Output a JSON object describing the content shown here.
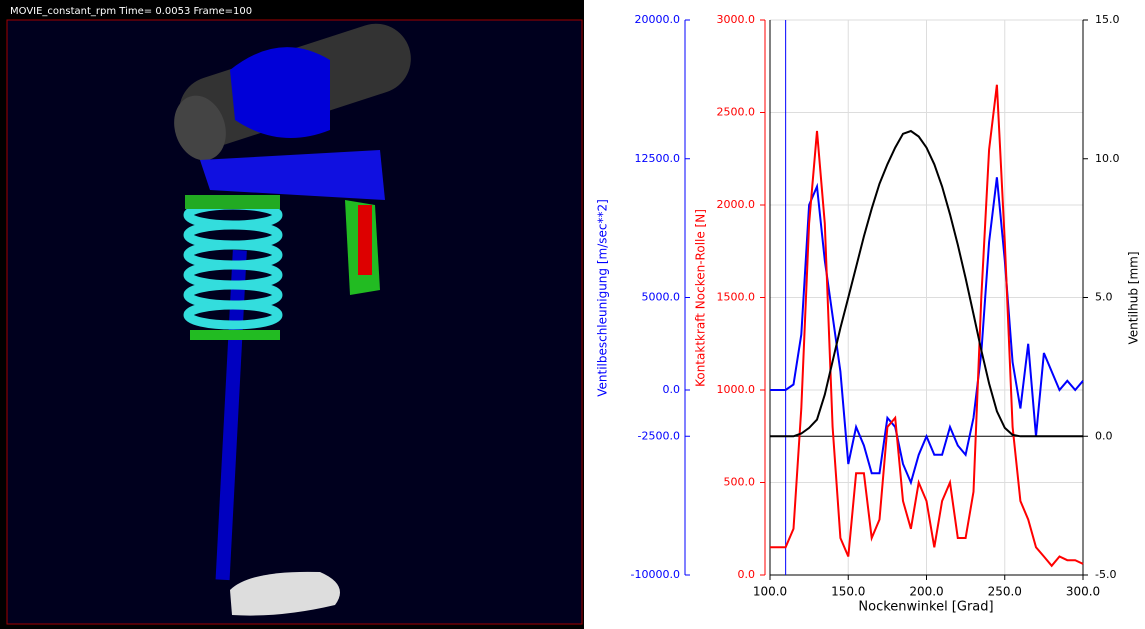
{
  "viewport": {
    "title": "MOVIE_constant_rpm   Time= 0.0053  Frame=100"
  },
  "chart_data": {
    "type": "line",
    "xlabel": "Nockenwinkel [Grad]",
    "xlim": [
      100,
      300
    ],
    "xticks": [
      {
        "value": 100,
        "label": "100.0"
      },
      {
        "value": 150,
        "label": "150.0"
      },
      {
        "value": 200,
        "label": "200.0"
      },
      {
        "value": 250,
        "label": "250.0"
      },
      {
        "value": 300,
        "label": "300.0"
      }
    ],
    "x": [
      100,
      105,
      110,
      115,
      120,
      125,
      130,
      135,
      140,
      145,
      150,
      155,
      160,
      165,
      170,
      175,
      180,
      185,
      190,
      195,
      200,
      205,
      210,
      215,
      220,
      225,
      230,
      235,
      240,
      245,
      250,
      255,
      260,
      265,
      270,
      275,
      280,
      285,
      290,
      295,
      300
    ],
    "ylabel": "Kontaktkraft Nocken-Rolle [N]",
    "ylim": [
      0,
      3000
    ],
    "yticks": [
      {
        "value": 0,
        "label": "0.0"
      },
      {
        "value": 500,
        "label": "500.0"
      },
      {
        "value": 1000,
        "label": "1000.0"
      },
      {
        "value": 1500,
        "label": "1500.0"
      },
      {
        "value": 2000,
        "label": "2000.0"
      },
      {
        "value": 2500,
        "label": "2500.0"
      },
      {
        "value": 3000,
        "label": "3000.0"
      }
    ],
    "y2label": "Ventilhub [mm]",
    "y2lim": [
      -5,
      15
    ],
    "y2ticks": [
      {
        "value": -5,
        "label": "-5.0"
      },
      {
        "value": 0,
        "label": "0.0"
      },
      {
        "value": 5,
        "label": "5.0"
      },
      {
        "value": 10,
        "label": "10.0"
      },
      {
        "value": 15,
        "label": "15.0"
      }
    ],
    "y3label": "Ventilbeschleunigung [m/sec**2]",
    "y3lim": [
      -10000,
      20000
    ],
    "y3ticks": [
      {
        "value": -10000,
        "label": "-10000.0"
      },
      {
        "value": -2500,
        "label": "-2500.0"
      },
      {
        "value": 0,
        "label": "0.0"
      },
      {
        "value": 5000,
        "label": "5000.0"
      },
      {
        "value": 12500,
        "label": "12500.0"
      },
      {
        "value": 20000,
        "label": "20000.0"
      }
    ],
    "grid": true,
    "cursor_x": 110,
    "series": [
      {
        "axis": "y3",
        "color": "#0000ff",
        "values": [
          0,
          0,
          0,
          300,
          3000,
          10000,
          11000,
          7000,
          4000,
          1000,
          -4000,
          -2000,
          -3000,
          -4500,
          -4500,
          -1500,
          -2000,
          -4000,
          -5000,
          -3500,
          -2500,
          -3500,
          -3500,
          -2000,
          -3000,
          -3500,
          -1500,
          2000,
          8000,
          11500,
          7000,
          1500,
          -1000,
          2500,
          -2500,
          2000,
          1000,
          0,
          500,
          0,
          500
        ]
      },
      {
        "axis": "y",
        "color": "#ff0000",
        "values": [
          150,
          150,
          150,
          250,
          900,
          1900,
          2400,
          1900,
          800,
          200,
          100,
          550,
          550,
          200,
          300,
          800,
          850,
          400,
          250,
          500,
          400,
          150,
          400,
          500,
          200,
          200,
          450,
          1500,
          2300,
          2650,
          1800,
          800,
          400,
          300,
          150,
          100,
          50,
          100,
          80,
          80,
          60
        ]
      },
      {
        "axis": "y2",
        "color": "#000000",
        "values": [
          0,
          0,
          0,
          0,
          0.1,
          0.3,
          0.6,
          1.5,
          2.7,
          3.9,
          5.0,
          6.1,
          7.2,
          8.2,
          9.1,
          9.8,
          10.4,
          10.9,
          11.0,
          10.8,
          10.4,
          9.8,
          9.0,
          8.0,
          6.9,
          5.7,
          4.4,
          3.1,
          1.9,
          0.9,
          0.3,
          0.05,
          0,
          0,
          0,
          0,
          0,
          0,
          0,
          0,
          0
        ]
      }
    ]
  }
}
